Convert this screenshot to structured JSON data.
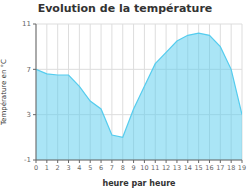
{
  "chart_data": {
    "type": "area",
    "title": "Evolution de la température",
    "xlabel": "heure par heure",
    "ylabel": "Température en °C",
    "x": [
      0,
      1,
      2,
      3,
      4,
      5,
      6,
      7,
      8,
      9,
      10,
      11,
      12,
      13,
      14,
      15,
      16,
      17,
      18,
      19
    ],
    "values": [
      7.0,
      6.6,
      6.5,
      6.5,
      5.5,
      4.2,
      3.5,
      1.2,
      1.0,
      3.5,
      5.5,
      7.5,
      8.5,
      9.5,
      10.0,
      10.2,
      10.0,
      9.0,
      7.0,
      3.0
    ],
    "color": "#55ccee",
    "xlim": [
      0,
      19
    ],
    "ylim": [
      -1.0,
      11.0
    ],
    "xticks": [
      0,
      1,
      2,
      3,
      4,
      5,
      6,
      7,
      8,
      9,
      10,
      11,
      12,
      13,
      14,
      15,
      16,
      17,
      18,
      19
    ],
    "yticks": [
      -1.0,
      3.0,
      7.0,
      11.0
    ],
    "grid": true
  }
}
